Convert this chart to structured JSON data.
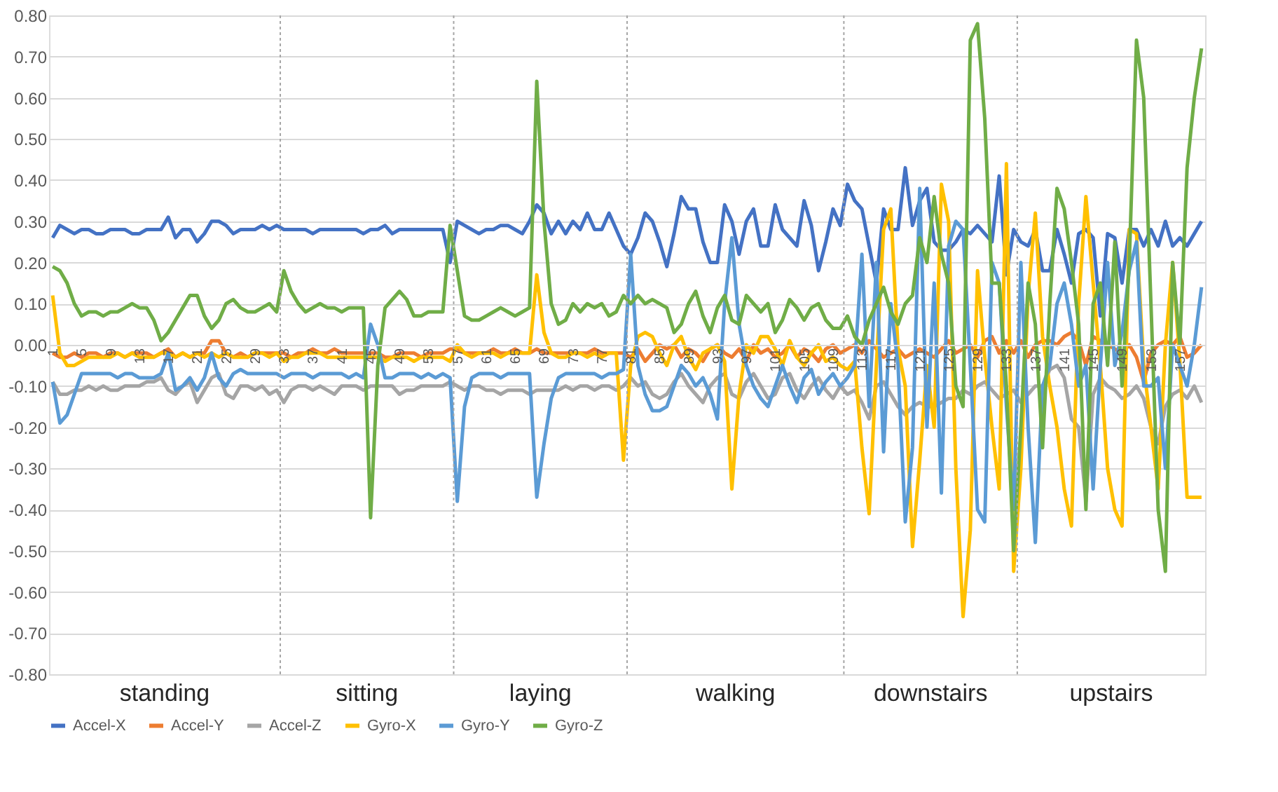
{
  "chart_data": {
    "type": "line",
    "x": [
      1,
      2,
      3,
      4,
      5,
      6,
      7,
      8,
      9,
      10,
      11,
      12,
      13,
      14,
      15,
      16,
      17,
      18,
      19,
      20,
      21,
      22,
      23,
      24,
      25,
      26,
      27,
      28,
      29,
      30,
      31,
      32,
      33,
      34,
      35,
      36,
      37,
      38,
      39,
      40,
      41,
      42,
      43,
      44,
      45,
      46,
      47,
      48,
      49,
      50,
      51,
      52,
      53,
      54,
      55,
      56,
      57,
      58,
      59,
      60,
      61,
      62,
      63,
      64,
      65,
      66,
      67,
      68,
      69,
      70,
      71,
      72,
      73,
      74,
      75,
      76,
      77,
      78,
      79,
      80,
      81,
      82,
      83,
      84,
      85,
      86,
      87,
      88,
      89,
      90,
      91,
      92,
      93,
      94,
      95,
      96,
      97,
      98,
      99,
      100,
      101,
      102,
      103,
      104,
      105,
      106,
      107,
      108,
      109,
      110,
      111,
      112,
      113,
      114,
      115,
      116,
      117,
      118,
      119,
      120,
      121,
      122,
      123,
      124,
      125,
      126,
      127,
      128,
      129,
      130,
      131,
      132,
      133,
      134,
      135,
      136,
      137,
      138,
      139,
      140,
      141,
      142,
      143,
      144,
      145,
      146,
      147,
      148,
      149,
      150,
      151,
      152,
      153,
      154,
      155,
      156,
      157,
      158,
      159,
      160
    ],
    "series": [
      {
        "name": "Accel-X",
        "color": "#4472c4",
        "values": [
          0.26,
          0.29,
          0.28,
          0.27,
          0.28,
          0.28,
          0.27,
          0.27,
          0.28,
          0.28,
          0.28,
          0.27,
          0.27,
          0.28,
          0.28,
          0.28,
          0.31,
          0.26,
          0.28,
          0.28,
          0.25,
          0.27,
          0.3,
          0.3,
          0.29,
          0.27,
          0.28,
          0.28,
          0.28,
          0.29,
          0.28,
          0.29,
          0.28,
          0.28,
          0.28,
          0.28,
          0.27,
          0.28,
          0.28,
          0.28,
          0.28,
          0.28,
          0.28,
          0.27,
          0.28,
          0.28,
          0.29,
          0.27,
          0.28,
          0.28,
          0.28,
          0.28,
          0.28,
          0.28,
          0.28,
          0.2,
          0.3,
          0.29,
          0.28,
          0.27,
          0.28,
          0.28,
          0.29,
          0.29,
          0.28,
          0.27,
          0.3,
          0.34,
          0.32,
          0.27,
          0.3,
          0.27,
          0.3,
          0.28,
          0.32,
          0.28,
          0.28,
          0.32,
          0.28,
          0.24,
          0.22,
          0.26,
          0.32,
          0.3,
          0.25,
          0.19,
          0.27,
          0.36,
          0.33,
          0.33,
          0.25,
          0.2,
          0.2,
          0.34,
          0.3,
          0.22,
          0.3,
          0.33,
          0.24,
          0.24,
          0.34,
          0.28,
          0.26,
          0.24,
          0.35,
          0.29,
          0.18,
          0.25,
          0.33,
          0.29,
          0.39,
          0.35,
          0.33,
          0.24,
          0.15,
          0.33,
          0.28,
          0.28,
          0.43,
          0.29,
          0.35,
          0.38,
          0.25,
          0.23,
          0.23,
          0.25,
          0.28,
          0.27,
          0.29,
          0.27,
          0.25,
          0.41,
          0.17,
          0.28,
          0.25,
          0.24,
          0.28,
          0.18,
          0.18,
          0.28,
          0.22,
          0.15,
          0.27,
          0.28,
          0.26,
          0.07,
          0.27,
          0.26,
          0.15,
          0.28,
          0.28,
          0.24,
          0.28,
          0.24,
          0.3,
          0.24,
          0.26,
          0.24,
          0.27,
          0.3
        ]
      },
      {
        "name": "Accel-Y",
        "color": "#ed7d31",
        "values": [
          -0.02,
          -0.03,
          -0.03,
          -0.02,
          -0.03,
          -0.02,
          -0.02,
          -0.03,
          -0.02,
          -0.02,
          -0.03,
          -0.02,
          -0.02,
          -0.02,
          -0.03,
          -0.02,
          -0.01,
          -0.03,
          -0.02,
          -0.03,
          -0.02,
          -0.02,
          0.01,
          0.01,
          -0.02,
          -0.03,
          -0.02,
          -0.03,
          -0.02,
          -0.02,
          -0.02,
          -0.02,
          -0.02,
          -0.03,
          -0.02,
          -0.02,
          -0.01,
          -0.02,
          -0.02,
          -0.01,
          -0.02,
          -0.02,
          -0.02,
          -0.02,
          -0.02,
          -0.02,
          -0.03,
          -0.03,
          -0.02,
          -0.02,
          -0.02,
          -0.03,
          -0.02,
          -0.02,
          -0.02,
          -0.01,
          -0.01,
          -0.02,
          -0.02,
          -0.02,
          -0.02,
          -0.01,
          -0.02,
          -0.02,
          -0.01,
          -0.02,
          -0.02,
          -0.01,
          -0.02,
          -0.02,
          -0.02,
          -0.02,
          -0.02,
          -0.02,
          -0.02,
          -0.01,
          -0.02,
          -0.02,
          -0.02,
          -0.02,
          -0.03,
          -0.01,
          -0.04,
          -0.02,
          0.0,
          -0.01,
          0.0,
          -0.03,
          -0.01,
          -0.02,
          -0.04,
          -0.01,
          0.0,
          -0.02,
          -0.03,
          -0.01,
          -0.04,
          0.0,
          -0.02,
          -0.01,
          -0.03,
          -0.02,
          0.0,
          -0.03,
          -0.01,
          -0.02,
          -0.04,
          -0.01,
          0.0,
          -0.02,
          -0.01,
          0.0,
          -0.02,
          0.01,
          -0.01,
          -0.03,
          -0.02,
          -0.01,
          -0.03,
          -0.02,
          -0.01,
          -0.02,
          -0.03,
          -0.01,
          0.01,
          -0.02,
          -0.01,
          0.0,
          -0.03,
          0.01,
          0.02,
          -0.02,
          0.01,
          -0.02,
          0.01,
          -0.03,
          0.0,
          0.01,
          0.01,
          0.0,
          0.02,
          0.03,
          0.01,
          -0.05,
          0.02,
          0.01,
          0.0,
          -0.01,
          -0.02,
          0.0,
          -0.03,
          -0.09,
          -0.02,
          0.0,
          0.01,
          0.0,
          0.02,
          -0.03,
          -0.02,
          0.0
        ]
      },
      {
        "name": "Accel-Z",
        "color": "#a5a5a5",
        "values": [
          -0.09,
          -0.12,
          -0.12,
          -0.11,
          -0.11,
          -0.1,
          -0.11,
          -0.1,
          -0.11,
          -0.11,
          -0.1,
          -0.1,
          -0.1,
          -0.09,
          -0.09,
          -0.08,
          -0.11,
          -0.12,
          -0.1,
          -0.09,
          -0.14,
          -0.11,
          -0.08,
          -0.07,
          -0.12,
          -0.13,
          -0.1,
          -0.1,
          -0.11,
          -0.1,
          -0.12,
          -0.11,
          -0.14,
          -0.11,
          -0.1,
          -0.1,
          -0.11,
          -0.1,
          -0.11,
          -0.12,
          -0.1,
          -0.1,
          -0.1,
          -0.11,
          -0.1,
          -0.1,
          -0.1,
          -0.1,
          -0.12,
          -0.11,
          -0.11,
          -0.1,
          -0.1,
          -0.1,
          -0.1,
          -0.09,
          -0.1,
          -0.11,
          -0.1,
          -0.1,
          -0.11,
          -0.11,
          -0.12,
          -0.11,
          -0.11,
          -0.11,
          -0.12,
          -0.11,
          -0.11,
          -0.11,
          -0.11,
          -0.1,
          -0.11,
          -0.1,
          -0.1,
          -0.11,
          -0.1,
          -0.1,
          -0.11,
          -0.1,
          -0.08,
          -0.1,
          -0.09,
          -0.12,
          -0.13,
          -0.12,
          -0.09,
          -0.07,
          -0.1,
          -0.12,
          -0.14,
          -0.1,
          -0.08,
          -0.07,
          -0.12,
          -0.13,
          -0.09,
          -0.07,
          -0.1,
          -0.13,
          -0.12,
          -0.08,
          -0.07,
          -0.11,
          -0.13,
          -0.1,
          -0.08,
          -0.11,
          -0.13,
          -0.1,
          -0.12,
          -0.11,
          -0.14,
          -0.18,
          -0.1,
          -0.09,
          -0.12,
          -0.15,
          -0.17,
          -0.15,
          -0.14,
          -0.15,
          -0.15,
          -0.14,
          -0.13,
          -0.13,
          -0.11,
          -0.12,
          -0.1,
          -0.09,
          -0.11,
          -0.13,
          -0.12,
          -0.11,
          -0.14,
          -0.12,
          -0.1,
          -0.1,
          -0.06,
          -0.05,
          -0.08,
          -0.18,
          -0.2,
          -0.38,
          -0.12,
          -0.08,
          -0.1,
          -0.11,
          -0.13,
          -0.12,
          -0.1,
          -0.13,
          -0.2,
          -0.24,
          -0.15,
          -0.12,
          -0.11,
          -0.13,
          -0.1,
          -0.14
        ]
      },
      {
        "name": "Gyro-X",
        "color": "#ffc000",
        "values": [
          0.12,
          -0.02,
          -0.05,
          -0.05,
          -0.04,
          -0.03,
          -0.03,
          -0.03,
          -0.03,
          -0.02,
          -0.03,
          -0.02,
          -0.03,
          -0.03,
          -0.03,
          -0.02,
          -0.02,
          -0.03,
          -0.02,
          -0.03,
          -0.02,
          -0.03,
          -0.02,
          -0.03,
          -0.02,
          -0.03,
          -0.03,
          -0.03,
          -0.02,
          -0.02,
          -0.03,
          -0.02,
          -0.04,
          -0.03,
          -0.03,
          -0.02,
          -0.02,
          -0.02,
          -0.03,
          -0.03,
          -0.03,
          -0.03,
          -0.03,
          -0.03,
          -0.03,
          -0.03,
          -0.04,
          -0.03,
          -0.03,
          -0.03,
          -0.04,
          -0.03,
          -0.03,
          -0.03,
          -0.03,
          -0.04,
          0.0,
          -0.02,
          -0.03,
          -0.02,
          -0.02,
          -0.02,
          -0.03,
          -0.02,
          -0.02,
          -0.02,
          -0.02,
          0.17,
          0.03,
          -0.02,
          -0.03,
          -0.03,
          -0.02,
          -0.02,
          -0.03,
          -0.02,
          -0.03,
          -0.02,
          -0.02,
          -0.28,
          -0.05,
          0.02,
          0.03,
          0.02,
          -0.02,
          -0.05,
          0.0,
          0.02,
          -0.03,
          -0.06,
          -0.02,
          -0.01,
          0.0,
          -0.04,
          -0.35,
          -0.12,
          0.0,
          -0.02,
          0.02,
          0.02,
          -0.01,
          -0.05,
          0.01,
          -0.03,
          -0.05,
          -0.02,
          0.0,
          -0.04,
          -0.03,
          -0.05,
          -0.06,
          -0.04,
          -0.25,
          -0.41,
          -0.05,
          0.28,
          0.33,
          -0.01,
          -0.1,
          -0.49,
          -0.28,
          -0.05,
          -0.2,
          0.39,
          0.3,
          -0.3,
          -0.66,
          -0.45,
          0.18,
          -0.03,
          -0.2,
          -0.35,
          0.44,
          -0.55,
          -0.3,
          0.12,
          0.32,
          0.02,
          -0.1,
          -0.2,
          -0.35,
          -0.44,
          0.1,
          0.36,
          0.15,
          -0.05,
          -0.3,
          -0.4,
          -0.44,
          0.28,
          0.27,
          -0.05,
          -0.2,
          -0.35,
          0.0,
          0.2,
          -0.04,
          -0.37,
          -0.37,
          -0.37
        ]
      },
      {
        "name": "Gyro-Y",
        "color": "#5b9bd5",
        "values": [
          -0.09,
          -0.19,
          -0.17,
          -0.12,
          -0.07,
          -0.07,
          -0.07,
          -0.07,
          -0.07,
          -0.08,
          -0.07,
          -0.07,
          -0.08,
          -0.08,
          -0.08,
          -0.07,
          -0.02,
          -0.11,
          -0.1,
          -0.08,
          -0.11,
          -0.08,
          -0.02,
          -0.08,
          -0.1,
          -0.07,
          -0.06,
          -0.07,
          -0.07,
          -0.07,
          -0.07,
          -0.07,
          -0.08,
          -0.07,
          -0.07,
          -0.07,
          -0.08,
          -0.07,
          -0.07,
          -0.07,
          -0.07,
          -0.08,
          -0.07,
          -0.08,
          0.05,
          0.0,
          -0.08,
          -0.08,
          -0.07,
          -0.07,
          -0.07,
          -0.08,
          -0.07,
          -0.08,
          -0.07,
          -0.08,
          -0.38,
          -0.15,
          -0.08,
          -0.07,
          -0.07,
          -0.07,
          -0.08,
          -0.07,
          -0.07,
          -0.07,
          -0.07,
          -0.37,
          -0.24,
          -0.13,
          -0.08,
          -0.07,
          -0.07,
          -0.07,
          -0.07,
          -0.07,
          -0.08,
          -0.07,
          -0.07,
          -0.06,
          0.22,
          -0.05,
          -0.12,
          -0.16,
          -0.16,
          -0.15,
          -0.1,
          -0.05,
          -0.07,
          -0.1,
          -0.08,
          -0.12,
          -0.18,
          0.1,
          0.26,
          0.05,
          -0.05,
          -0.1,
          -0.13,
          -0.15,
          -0.1,
          -0.05,
          -0.1,
          -0.14,
          -0.08,
          -0.06,
          -0.12,
          -0.09,
          -0.07,
          -0.1,
          -0.08,
          -0.05,
          0.22,
          -0.15,
          0.2,
          -0.26,
          0.1,
          -0.05,
          -0.43,
          -0.25,
          0.38,
          -0.2,
          0.15,
          -0.36,
          0.24,
          0.3,
          0.28,
          -0.05,
          -0.4,
          -0.43,
          0.2,
          0.15,
          -0.15,
          -0.4,
          0.2,
          -0.2,
          -0.48,
          -0.1,
          -0.05,
          0.1,
          0.15,
          0.05,
          -0.1,
          -0.05,
          -0.35,
          -0.05,
          0.2,
          -0.05,
          0.03,
          0.18,
          0.25,
          -0.1,
          -0.1,
          -0.08,
          -0.3,
          0.0,
          -0.05,
          -0.1,
          0.0,
          0.14
        ]
      },
      {
        "name": "Gyro-Z",
        "color": "#70ad47",
        "values": [
          0.19,
          0.18,
          0.15,
          0.1,
          0.07,
          0.08,
          0.08,
          0.07,
          0.08,
          0.08,
          0.09,
          0.1,
          0.09,
          0.09,
          0.06,
          0.01,
          0.03,
          0.06,
          0.09,
          0.12,
          0.12,
          0.07,
          0.04,
          0.06,
          0.1,
          0.11,
          0.09,
          0.08,
          0.08,
          0.09,
          0.1,
          0.08,
          0.18,
          0.13,
          0.1,
          0.08,
          0.09,
          0.1,
          0.09,
          0.09,
          0.08,
          0.09,
          0.09,
          0.09,
          -0.42,
          -0.05,
          0.09,
          0.11,
          0.13,
          0.11,
          0.07,
          0.07,
          0.08,
          0.08,
          0.08,
          0.29,
          0.18,
          0.07,
          0.06,
          0.06,
          0.07,
          0.08,
          0.09,
          0.08,
          0.07,
          0.08,
          0.09,
          0.64,
          0.3,
          0.1,
          0.05,
          0.06,
          0.1,
          0.08,
          0.1,
          0.09,
          0.1,
          0.07,
          0.08,
          0.12,
          0.1,
          0.12,
          0.1,
          0.11,
          0.1,
          0.09,
          0.03,
          0.05,
          0.1,
          0.13,
          0.07,
          0.03,
          0.09,
          0.12,
          0.06,
          0.05,
          0.12,
          0.1,
          0.08,
          0.1,
          0.03,
          0.06,
          0.11,
          0.09,
          0.06,
          0.09,
          0.1,
          0.06,
          0.04,
          0.04,
          0.07,
          0.02,
          0.0,
          0.06,
          0.1,
          0.14,
          0.08,
          0.05,
          0.1,
          0.12,
          0.26,
          0.2,
          0.36,
          0.22,
          0.15,
          -0.1,
          -0.15,
          0.74,
          0.78,
          0.55,
          0.15,
          0.15,
          -0.1,
          -0.5,
          -0.2,
          0.15,
          0.05,
          -0.25,
          0.1,
          0.38,
          0.33,
          0.2,
          0.05,
          -0.4,
          0.1,
          0.15,
          -0.05,
          0.25,
          -0.1,
          0.2,
          0.74,
          0.6,
          0.1,
          -0.4,
          -0.55,
          0.2,
          0.0,
          0.43,
          0.6,
          0.72
        ]
      }
    ],
    "xlim": [
      0.5,
      160.5
    ],
    "xticks": [
      1,
      5,
      9,
      13,
      17,
      21,
      25,
      29,
      33,
      37,
      41,
      45,
      49,
      53,
      57,
      61,
      65,
      69,
      73,
      77,
      81,
      85,
      89,
      93,
      97,
      101,
      105,
      109,
      113,
      117,
      121,
      125,
      129,
      133,
      137,
      141,
      145,
      149,
      153,
      157
    ],
    "ylim": [
      -0.8,
      0.8
    ],
    "yticks": [
      {
        "value": -0.8,
        "label": "-0.80"
      },
      {
        "value": -0.7,
        "label": "-0.70"
      },
      {
        "value": -0.6,
        "label": "-0.60"
      },
      {
        "value": -0.5,
        "label": "-0.50"
      },
      {
        "value": -0.4,
        "label": "-0.40"
      },
      {
        "value": -0.3,
        "label": "-0.30"
      },
      {
        "value": -0.2,
        "label": "-0.20"
      },
      {
        "value": -0.1,
        "label": "-0.10"
      },
      {
        "value": 0,
        "label": "0.00"
      },
      {
        "value": 0.1,
        "label": "0.10"
      },
      {
        "value": 0.2,
        "label": "0.20"
      },
      {
        "value": 0.3,
        "label": "0.30"
      },
      {
        "value": 0.4,
        "label": "0.40"
      },
      {
        "value": 0.5,
        "label": "0.50"
      },
      {
        "value": 0.6,
        "label": "0.60"
      },
      {
        "value": 0.7,
        "label": "0.70"
      },
      {
        "value": 0.8,
        "label": "0.80"
      }
    ],
    "ref_lines": [
      {
        "axis": "x",
        "value": 32.5,
        "line_style": "dotted",
        "color": "#a6a6a6"
      },
      {
        "axis": "x",
        "value": 56.5,
        "line_style": "dotted",
        "color": "#a6a6a6"
      },
      {
        "axis": "x",
        "value": 80.5,
        "line_style": "dotted",
        "color": "#a6a6a6"
      },
      {
        "axis": "x",
        "value": 110.5,
        "line_style": "dotted",
        "color": "#a6a6a6"
      },
      {
        "axis": "x",
        "value": 134.5,
        "line_style": "dotted",
        "color": "#a6a6a6"
      }
    ],
    "annotations": [
      "standing",
      "sitting",
      "laying",
      "walking",
      "downstairs",
      "upstairs"
    ],
    "grid": "y",
    "legend": "bottom",
    "marker": "none",
    "line_style": "solid"
  }
}
